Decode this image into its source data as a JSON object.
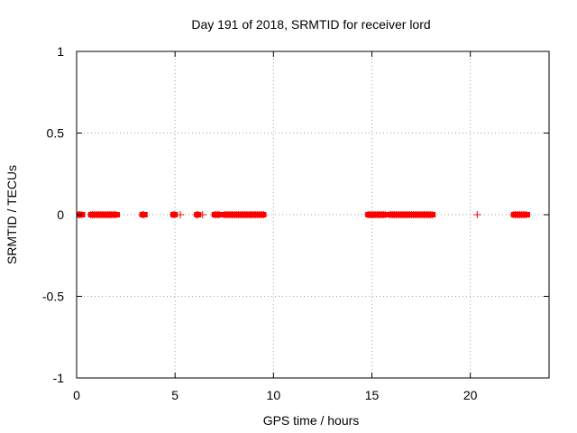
{
  "chart_data": {
    "type": "scatter",
    "title": "Day 191 of 2018, SRMTID for receiver lord",
    "xlabel": "GPS time / hours",
    "ylabel": "SRMTID / TECUs",
    "xlim": [
      0,
      24
    ],
    "ylim": [
      -1,
      1
    ],
    "grid": true,
    "x_ticks": [
      0,
      5,
      10,
      15,
      20
    ],
    "x_tick_labels": [
      "0",
      "5",
      "10",
      "15",
      "20"
    ],
    "y_ticks": [
      1,
      0.5,
      0,
      -0.5,
      -1
    ],
    "y_tick_labels": [
      "1",
      "0.5",
      "0",
      "-0.5",
      "-1"
    ],
    "series": [
      {
        "name": "SRMTID",
        "color": "#ff0000",
        "marker": "plus",
        "segments": [
          [
            0.0,
            0.3
          ],
          [
            0.72,
            2.06
          ],
          [
            3.33,
            3.47
          ],
          [
            4.9,
            5.0
          ],
          [
            5.27,
            5.27
          ],
          [
            6.1,
            6.2
          ],
          [
            6.4,
            6.45
          ],
          [
            7.0,
            7.3
          ],
          [
            7.5,
            9.5
          ],
          [
            14.8,
            15.73
          ],
          [
            15.9,
            18.1
          ],
          [
            20.35,
            20.35
          ],
          [
            22.2,
            22.9
          ]
        ],
        "y": 0
      }
    ]
  }
}
